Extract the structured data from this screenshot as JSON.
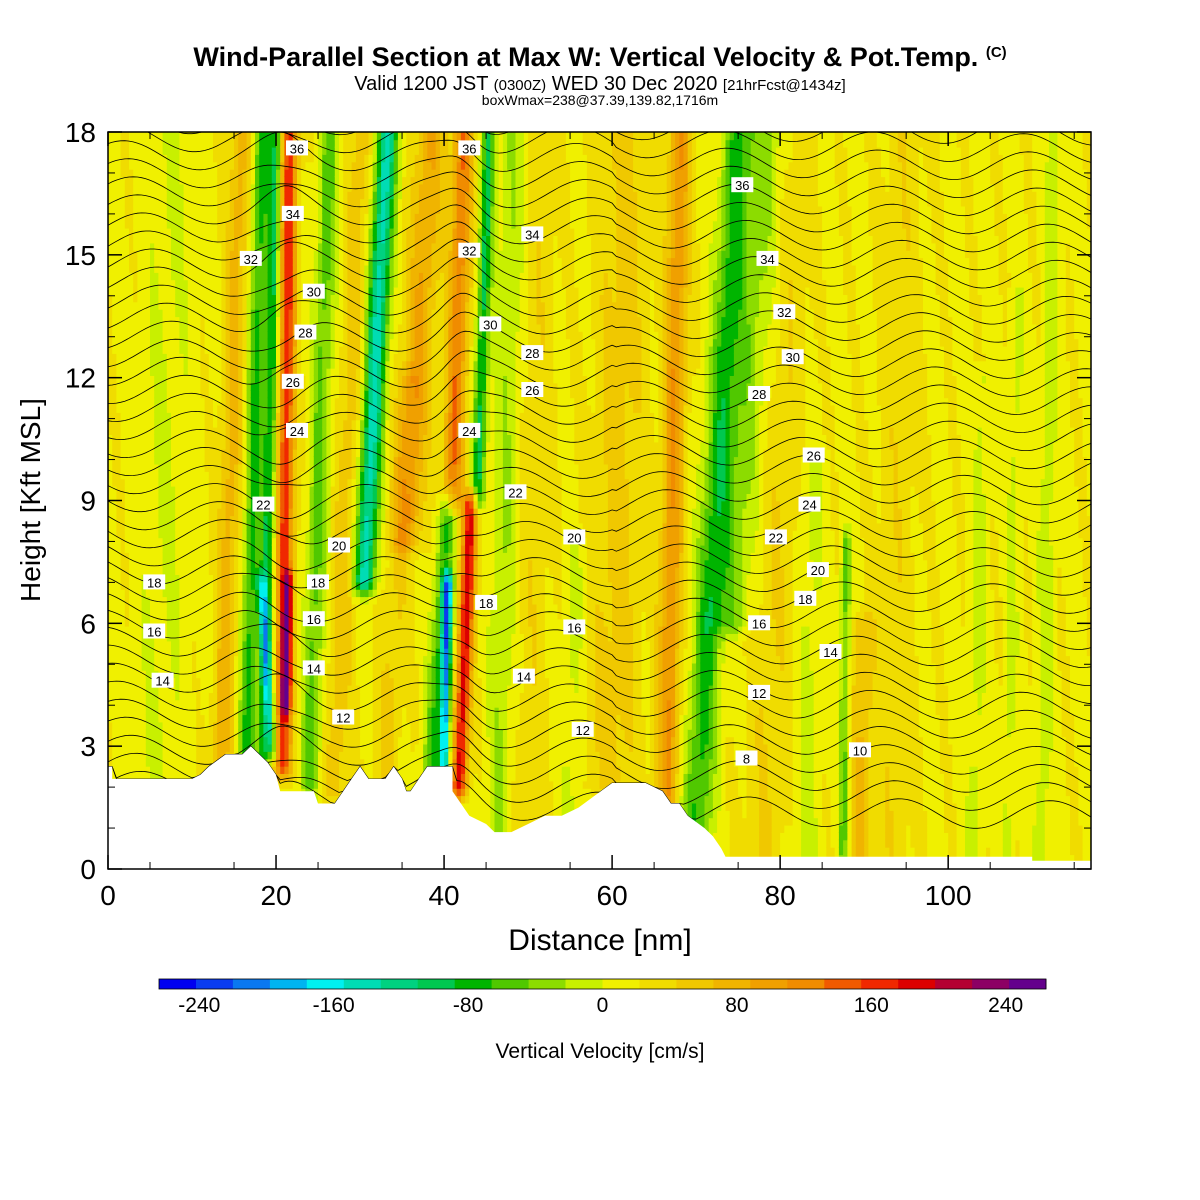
{
  "title": {
    "main": "Wind-Parallel Section at Max W: Vertical Velocity & Pot.Temp.",
    "copyright": "(C)",
    "valid_prefix": "Valid 1200 JST",
    "valid_utc": "(0300Z)",
    "valid_date": "WED 30 Dec 2020",
    "forecast": "[21hrFcst@1434z]",
    "boxwmax": "boxWmax=238@37.39,139.82,1716m"
  },
  "chart_data": {
    "type": "heatmap",
    "xlabel": "Distance [nm]",
    "ylabel": "Height [Kft MSL]",
    "xlim": [
      0,
      117
    ],
    "ylim": [
      0,
      18
    ],
    "x_ticks": [
      "0",
      "20",
      "40",
      "60",
      "80",
      "100"
    ],
    "y_ticks": [
      "0",
      "3",
      "6",
      "9",
      "12",
      "15",
      "18"
    ],
    "colorbar": {
      "label": "Vertical Velocity [cm/s]",
      "tick_labels": [
        "-240",
        "-160",
        "-80",
        "0",
        "80",
        "160",
        "240"
      ],
      "colors": [
        "#0000f0",
        "#0a3cf0",
        "#0a78f0",
        "#00b4f0",
        "#00f0f0",
        "#00dcb4",
        "#00d280",
        "#00c850",
        "#00b400",
        "#50c800",
        "#8cdc00",
        "#c8f000",
        "#f0f000",
        "#f0dc00",
        "#f0c800",
        "#f0b400",
        "#f0a000",
        "#f08c00",
        "#f05a00",
        "#f02800",
        "#dc0000",
        "#b40032",
        "#8c0064",
        "#64008c"
      ],
      "range": [
        -264,
        264
      ]
    },
    "terrain": [
      [
        0,
        2.5
      ],
      [
        0.5,
        2.5
      ],
      [
        0.5,
        2.2
      ],
      [
        2,
        2.2
      ],
      [
        2,
        2.2
      ],
      [
        4,
        2.2
      ],
      [
        6,
        2.2
      ],
      [
        8,
        2.2
      ],
      [
        10,
        2.2
      ],
      [
        11,
        2.3
      ],
      [
        12,
        2.5
      ],
      [
        14,
        2.8
      ],
      [
        16,
        2.8
      ],
      [
        17,
        3.0
      ],
      [
        18,
        2.8
      ],
      [
        19,
        2.6
      ],
      [
        20,
        2.3
      ],
      [
        20.5,
        1.9
      ],
      [
        23,
        1.9
      ],
      [
        24.5,
        1.9
      ],
      [
        25,
        1.6
      ],
      [
        27,
        1.6
      ],
      [
        28,
        1.9
      ],
      [
        29,
        2.2
      ],
      [
        30,
        2.5
      ],
      [
        31,
        2.2
      ],
      [
        33,
        2.2
      ],
      [
        34,
        2.5
      ],
      [
        35,
        2.2
      ],
      [
        35.5,
        1.9
      ],
      [
        36,
        1.9
      ],
      [
        37,
        2.2
      ],
      [
        38,
        2.5
      ],
      [
        40,
        2.5
      ],
      [
        41,
        2.5
      ],
      [
        41,
        1.9
      ],
      [
        42,
        1.6
      ],
      [
        43,
        1.3
      ],
      [
        45,
        1.1
      ],
      [
        46,
        0.9
      ],
      [
        48,
        0.9
      ],
      [
        50,
        1.1
      ],
      [
        52,
        1.3
      ],
      [
        54,
        1.3
      ],
      [
        56,
        1.5
      ],
      [
        58,
        1.8
      ],
      [
        60,
        2.1
      ],
      [
        62,
        2.1
      ],
      [
        64,
        2.1
      ],
      [
        66,
        1.9
      ],
      [
        67,
        1.6
      ],
      [
        68,
        1.6
      ],
      [
        69,
        1.3
      ],
      [
        71,
        1.0
      ],
      [
        72,
        0.8
      ],
      [
        73,
        0.5
      ],
      [
        73.5,
        0.3
      ],
      [
        76,
        0.3
      ],
      [
        110,
        0.3
      ],
      [
        110,
        0.2
      ],
      [
        117,
        0.2
      ]
    ],
    "w_features": [
      {
        "x": 13.5,
        "z0": 2.5,
        "z1": 18,
        "tilt": 0.15,
        "w": 1.2,
        "amp": 60
      },
      {
        "x": 16.5,
        "z0": 2.5,
        "z1": 18,
        "tilt": 0.12,
        "w": 1.0,
        "amp": -90
      },
      {
        "x": 18.5,
        "z0": 2.8,
        "z1": 18,
        "tilt": 0.1,
        "w": 0.8,
        "amp": -110
      },
      {
        "x": 20.8,
        "z0": 2.5,
        "z1": 18,
        "tilt": 0.05,
        "w": 1.0,
        "amp": 150
      },
      {
        "x": 21.2,
        "z0": 4.0,
        "z1": 7.0,
        "tilt": 0.1,
        "w": 0.6,
        "amp": 110
      },
      {
        "x": 19.5,
        "z0": 3.0,
        "z1": 7.0,
        "tilt": -0.3,
        "w": 0.6,
        "amp": -110
      },
      {
        "x": 24.0,
        "z0": 2.0,
        "z1": 18,
        "tilt": 0.15,
        "w": 1.2,
        "amp": -70
      },
      {
        "x": 27.0,
        "z0": 2.0,
        "z1": 18,
        "tilt": 0.2,
        "w": 1.4,
        "amp": 40
      },
      {
        "x": 30.5,
        "z0": 7.0,
        "z1": 18,
        "tilt": 0.25,
        "w": 1.3,
        "amp": -160
      },
      {
        "x": 33.0,
        "z0": 2.2,
        "z1": 12,
        "tilt": 0.3,
        "w": 1.5,
        "amp": 30
      },
      {
        "x": 35.5,
        "z0": 8.0,
        "z1": 18,
        "tilt": 0.3,
        "w": 1.8,
        "amp": 70
      },
      {
        "x": 38.5,
        "z0": 2.5,
        "z1": 9.0,
        "tilt": 0.3,
        "w": 1.1,
        "amp": -80
      },
      {
        "x": 40.0,
        "z0": 2.6,
        "z1": 7.0,
        "tilt": 0.1,
        "w": 0.6,
        "amp": -200
      },
      {
        "x": 41.8,
        "z0": 2.0,
        "z1": 9.0,
        "tilt": 0.2,
        "w": 0.9,
        "amp": 170
      },
      {
        "x": 41.0,
        "z0": 9.0,
        "z1": 18,
        "tilt": 0.15,
        "w": 1.2,
        "amp": 110
      },
      {
        "x": 44.0,
        "z0": 9.0,
        "z1": 18,
        "tilt": 0.15,
        "w": 0.8,
        "amp": -110
      },
      {
        "x": 46.5,
        "z0": 1.0,
        "z1": 18,
        "tilt": 0.1,
        "w": 1.5,
        "amp": -40
      },
      {
        "x": 50.0,
        "z0": 1.0,
        "z1": 18,
        "tilt": 0.1,
        "w": 2.0,
        "amp": 20
      },
      {
        "x": 55.0,
        "z0": 1.3,
        "z1": 8.0,
        "tilt": 0.1,
        "w": 1.2,
        "amp": -25
      },
      {
        "x": 60.0,
        "z0": 2.1,
        "z1": 18,
        "tilt": 0.1,
        "w": 3.0,
        "amp": 35
      },
      {
        "x": 66.5,
        "z0": 1.8,
        "z1": 18,
        "tilt": 0.1,
        "w": 1.3,
        "amp": 90
      },
      {
        "x": 70.0,
        "z0": 1.0,
        "z1": 18,
        "tilt": 0.3,
        "w": 1.8,
        "amp": -90
      },
      {
        "x": 74.0,
        "z0": 6.0,
        "z1": 18,
        "tilt": 0.4,
        "w": 2.5,
        "amp": -50
      },
      {
        "x": 78.0,
        "z0": 0.3,
        "z1": 18,
        "tilt": 0.2,
        "w": 2.5,
        "amp": 25
      },
      {
        "x": 83.0,
        "z0": 0.3,
        "z1": 10,
        "tilt": 0.1,
        "w": 1.5,
        "amp": -25
      },
      {
        "x": 87.5,
        "z0": 0.3,
        "z1": 8.0,
        "tilt": 0.05,
        "w": 0.6,
        "amp": -70
      },
      {
        "x": 89.5,
        "z0": 0.3,
        "z1": 6.0,
        "tilt": 0.05,
        "w": 1.2,
        "amp": 50
      },
      {
        "x": 93.0,
        "z0": 0.3,
        "z1": 18,
        "tilt": 0.1,
        "w": 2.5,
        "amp": 20
      },
      {
        "x": 103.0,
        "z0": 0.3,
        "z1": 12,
        "tilt": 0.1,
        "w": 1.0,
        "amp": -25
      },
      {
        "x": 107.0,
        "z0": 0.3,
        "z1": 14,
        "tilt": 0.1,
        "w": 0.8,
        "amp": -25
      },
      {
        "x": 111.0,
        "z0": 0.3,
        "z1": 18,
        "tilt": 0.1,
        "w": 1.0,
        "amp": -30
      },
      {
        "x": 6.0,
        "z0": 2.2,
        "z1": 18,
        "tilt": 0.1,
        "w": 3.0,
        "amp": -20
      }
    ],
    "contour_labels": [
      {
        "text": "36",
        "x": 22.5,
        "y": 17.6
      },
      {
        "text": "36",
        "x": 43.0,
        "y": 17.6
      },
      {
        "text": "36",
        "x": 75.5,
        "y": 16.7
      },
      {
        "text": "34",
        "x": 22.0,
        "y": 16.0
      },
      {
        "text": "34",
        "x": 50.5,
        "y": 15.5
      },
      {
        "text": "34",
        "x": 78.5,
        "y": 14.9
      },
      {
        "text": "32",
        "x": 17.0,
        "y": 14.9
      },
      {
        "text": "32",
        "x": 43.0,
        "y": 15.1
      },
      {
        "text": "32",
        "x": 80.5,
        "y": 13.6
      },
      {
        "text": "30",
        "x": 24.5,
        "y": 14.1
      },
      {
        "text": "30",
        "x": 45.5,
        "y": 13.3
      },
      {
        "text": "30",
        "x": 81.5,
        "y": 12.5
      },
      {
        "text": "28",
        "x": 23.5,
        "y": 13.1
      },
      {
        "text": "28",
        "x": 50.5,
        "y": 12.6
      },
      {
        "text": "28",
        "x": 77.5,
        "y": 11.6
      },
      {
        "text": "26",
        "x": 22.0,
        "y": 11.9
      },
      {
        "text": "26",
        "x": 50.5,
        "y": 11.7
      },
      {
        "text": "26",
        "x": 84.0,
        "y": 10.1
      },
      {
        "text": "24",
        "x": 22.5,
        "y": 10.7
      },
      {
        "text": "24",
        "x": 43.0,
        "y": 10.7
      },
      {
        "text": "24",
        "x": 83.5,
        "y": 8.9
      },
      {
        "text": "22",
        "x": 18.5,
        "y": 8.9
      },
      {
        "text": "22",
        "x": 48.5,
        "y": 9.2
      },
      {
        "text": "22",
        "x": 79.5,
        "y": 8.1
      },
      {
        "text": "20",
        "x": 27.5,
        "y": 7.9
      },
      {
        "text": "20",
        "x": 55.5,
        "y": 8.1
      },
      {
        "text": "20",
        "x": 84.5,
        "y": 7.3
      },
      {
        "text": "18",
        "x": 5.5,
        "y": 7.0
      },
      {
        "text": "18",
        "x": 25.0,
        "y": 7.0
      },
      {
        "text": "18",
        "x": 45.0,
        "y": 6.5
      },
      {
        "text": "18",
        "x": 83.0,
        "y": 6.6
      },
      {
        "text": "16",
        "x": 5.5,
        "y": 5.8
      },
      {
        "text": "16",
        "x": 24.5,
        "y": 6.1
      },
      {
        "text": "16",
        "x": 55.5,
        "y": 5.9
      },
      {
        "text": "16",
        "x": 77.5,
        "y": 6.0
      },
      {
        "text": "14",
        "x": 6.5,
        "y": 4.6
      },
      {
        "text": "14",
        "x": 24.5,
        "y": 4.9
      },
      {
        "text": "14",
        "x": 49.5,
        "y": 4.7
      },
      {
        "text": "14",
        "x": 86.0,
        "y": 5.3
      },
      {
        "text": "12",
        "x": 28.0,
        "y": 3.7
      },
      {
        "text": "12",
        "x": 56.5,
        "y": 3.4
      },
      {
        "text": "12",
        "x": 77.5,
        "y": 4.3
      },
      {
        "text": "10",
        "x": 89.5,
        "y": 2.9
      },
      {
        "text": "8",
        "x": 76.0,
        "y": 2.7
      }
    ]
  }
}
